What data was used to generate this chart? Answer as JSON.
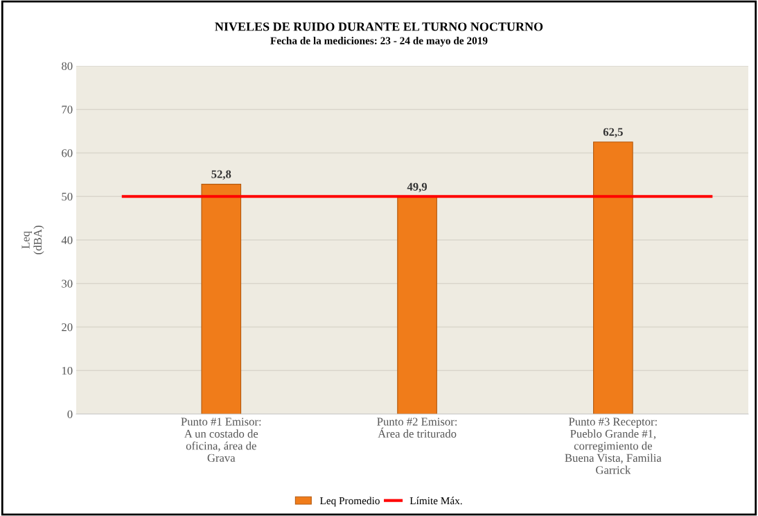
{
  "chart_data": {
    "type": "bar",
    "title": "NIVELES DE RUIDO DURANTE EL TURNO NOCTURNO",
    "subtitle": "Fecha de la mediciones: 23 - 24 de mayo de 2019",
    "ylabel": "Leq\n(dBA)",
    "categories": [
      "Punto #1 Emisor:\nA un costado de\noficina, área de\nGrava",
      "Punto #2 Emisor:\nÁrea de triturado",
      "Punto #3 Receptor:\nPueblo Grande #1,\ncorregimiento de\nBuena Vista, Familia\nGarrick"
    ],
    "series": [
      {
        "name": "Leq Promedio",
        "color": "#f07c1a",
        "values": [
          52.8,
          49.9,
          62.5
        ],
        "value_labels": [
          "52,8",
          "49,9",
          "62,5"
        ]
      }
    ],
    "ref_lines": [
      {
        "axis": "y",
        "value": 50,
        "label": "Límite Máx.",
        "color": "#ff0000",
        "line_style": "solid"
      }
    ],
    "ylim": [
      0,
      80
    ],
    "yticks": [
      0,
      10,
      20,
      30,
      40,
      50,
      60,
      70,
      80
    ],
    "grid": "y",
    "legend": "bottom"
  }
}
